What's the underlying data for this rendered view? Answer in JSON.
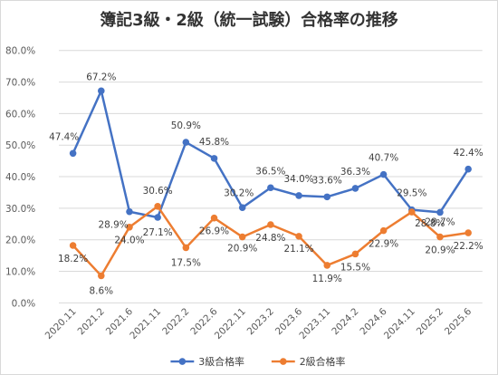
{
  "chart_data": {
    "type": "line",
    "title": "簿記3級・2級（統一試験）合格率の推移",
    "xlabel": "",
    "ylabel": "",
    "ylim": [
      0,
      80
    ],
    "yticks": [
      "0.0%",
      "10.0%",
      "20.0%",
      "30.0%",
      "40.0%",
      "50.0%",
      "60.0%",
      "70.0%",
      "80.0%"
    ],
    "grid": true,
    "legend": "bottom",
    "categories": [
      "2020.11",
      "2021.2",
      "2021.6",
      "2021.11",
      "2022.2",
      "2022.6",
      "2022.11",
      "2023.2",
      "2023.6",
      "2023.11",
      "2024.2",
      "2024.6",
      "2024.11",
      "2025.2",
      "2025.6"
    ],
    "series": [
      {
        "name": "3級合格率",
        "color": "#4472c4",
        "values": [
          47.4,
          67.2,
          28.9,
          27.1,
          50.9,
          45.8,
          30.2,
          36.5,
          34.0,
          33.6,
          36.3,
          40.7,
          29.5,
          28.7,
          42.4
        ],
        "labels": [
          "47.4%",
          "67.2%",
          "28.9%",
          "27.1%",
          "50.9%",
          "45.8%",
          "30.2%",
          "36.5%",
          "34.0%",
          "33.6%",
          "36.3%",
          "40.7%",
          "29.5%",
          "28.7%",
          "42.4%"
        ]
      },
      {
        "name": "2級合格率",
        "color": "#ed7d31",
        "values": [
          18.2,
          8.6,
          24.0,
          30.6,
          17.5,
          26.9,
          20.9,
          24.8,
          21.1,
          11.9,
          15.5,
          22.9,
          28.8,
          20.9,
          22.2
        ],
        "labels": [
          "18.2%",
          "8.6%",
          "24.0%",
          "30.6%",
          "17.5%",
          "26.9%",
          "20.9%",
          "24.8%",
          "21.1%",
          "11.9%",
          "15.5%",
          "22.9%",
          "28.8%",
          "20.9%",
          "22.2%"
        ]
      }
    ]
  }
}
